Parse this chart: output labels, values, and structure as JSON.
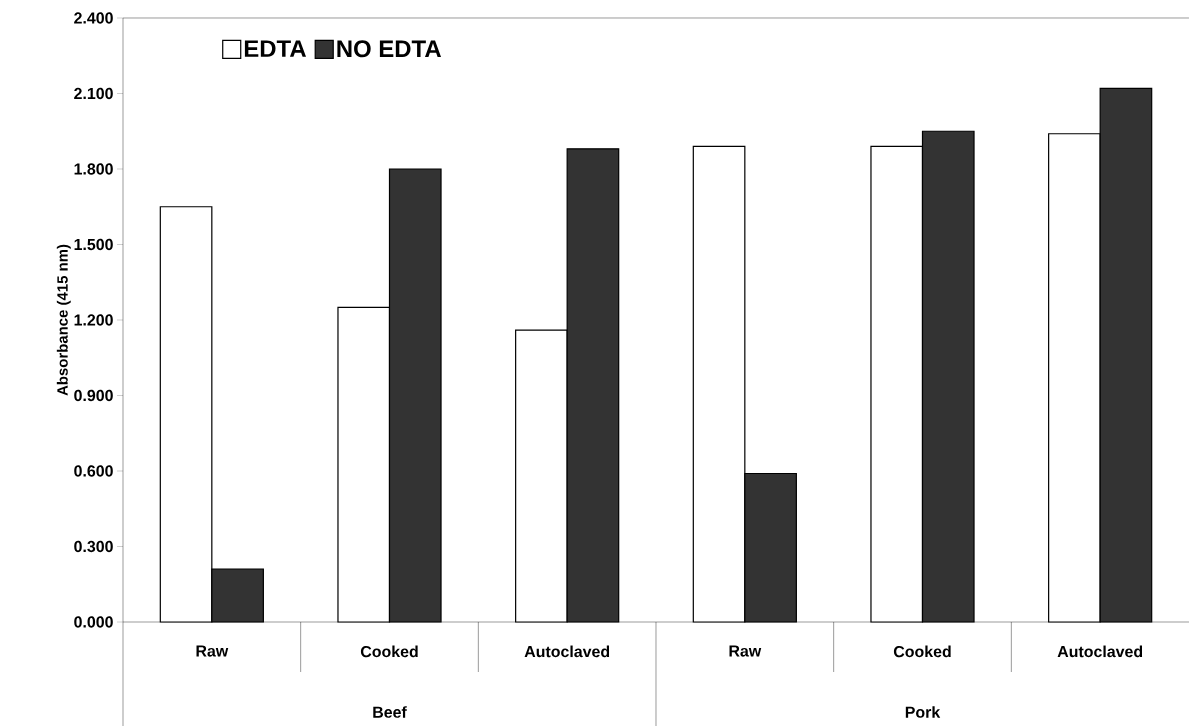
{
  "chart_data": {
    "type": "bar",
    "ylabel": "Absorbance (415 nm)",
    "categories": [
      "Raw",
      "Cooked",
      "Autoclaved",
      "Raw",
      "Cooked",
      "Autoclaved"
    ],
    "series": [
      {
        "name": "EDTA",
        "color": "#ffffff",
        "values": [
          1.65,
          1.25,
          1.16,
          1.89,
          1.89,
          1.94
        ]
      },
      {
        "name": "NO EDTA",
        "color": "#333333",
        "values": [
          0.21,
          1.8,
          1.88,
          0.59,
          1.95,
          2.12
        ]
      }
    ],
    "ylim": [
      0,
      2.4
    ],
    "yticks": [
      {
        "value": 0,
        "label": "0.000"
      },
      {
        "value": 0.3,
        "label": "0.300"
      },
      {
        "value": 0.6,
        "label": "0.600"
      },
      {
        "value": 0.9,
        "label": "0.900"
      },
      {
        "value": 1.2,
        "label": "1.200"
      },
      {
        "value": 1.5,
        "label": "1.500"
      },
      {
        "value": 1.8,
        "label": "1.800"
      },
      {
        "value": 2.1,
        "label": "2.100"
      },
      {
        "value": 2.4,
        "label": "2.400"
      }
    ],
    "legend": "top left",
    "annotations": [
      "Beef",
      "Pork"
    ]
  }
}
